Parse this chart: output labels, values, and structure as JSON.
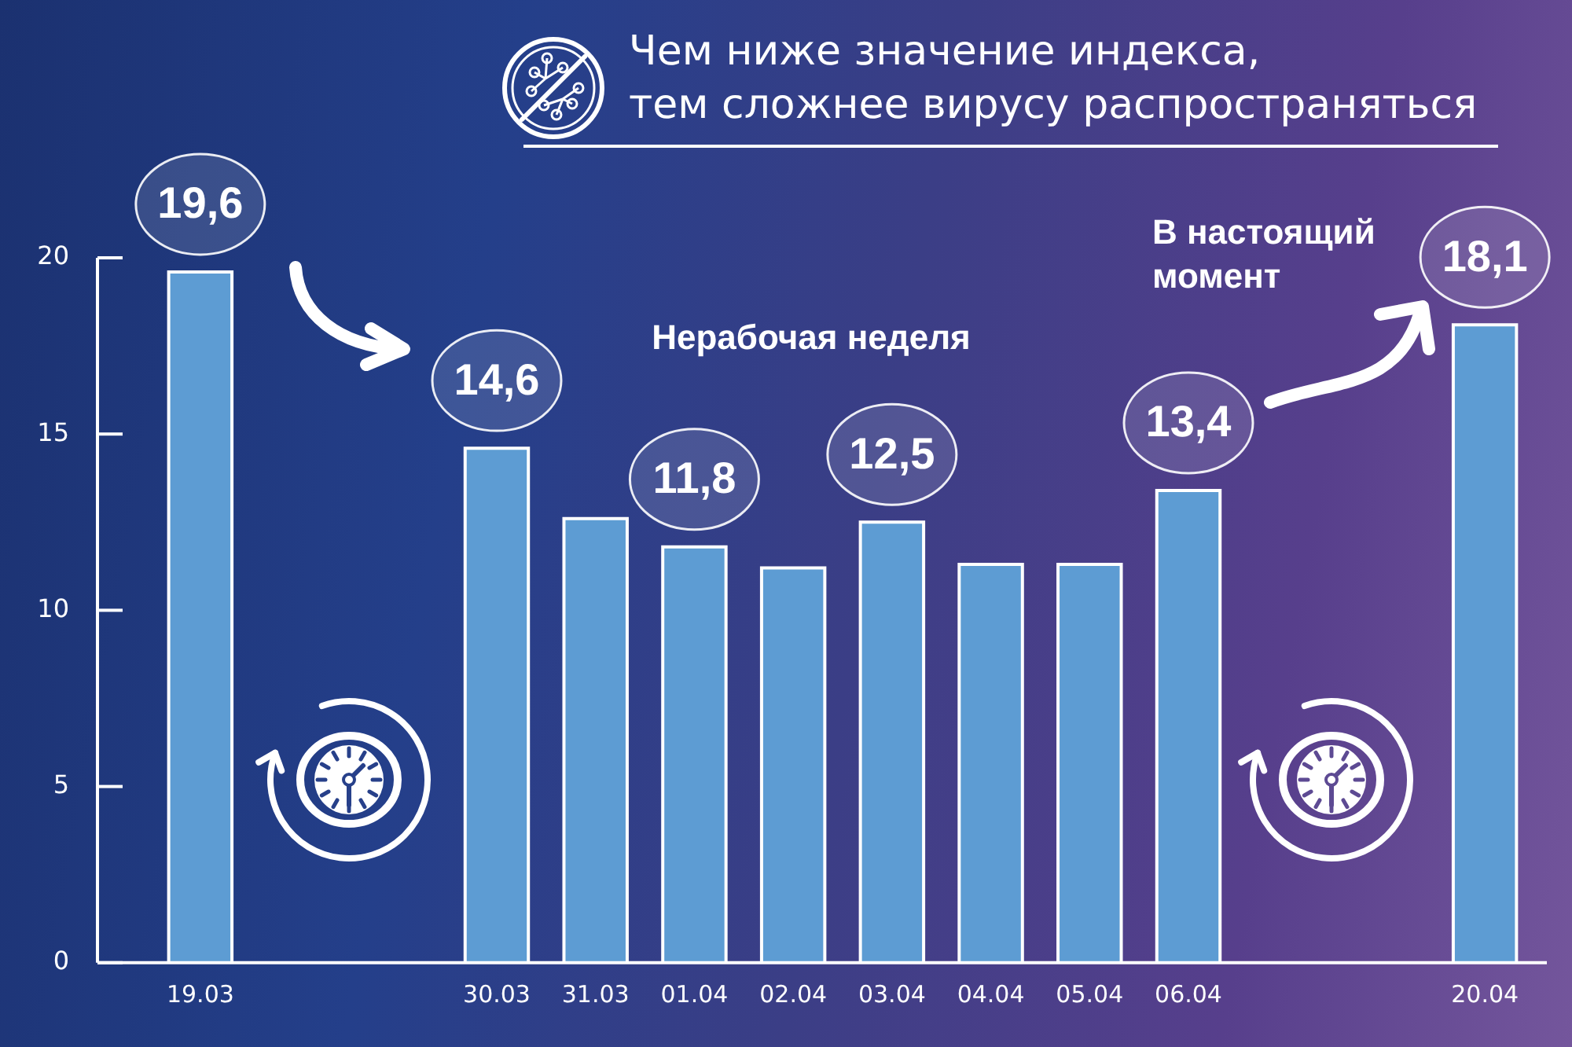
{
  "chart_data": {
    "type": "bar",
    "title": "Чем ниже значение индекса,\nтем сложнее вирусу распространяться",
    "categories": [
      "19.03",
      null,
      null,
      "30.03",
      "31.03",
      "01.04",
      "02.04",
      "03.04",
      "04.04",
      "05.04",
      "06.04",
      null,
      null,
      "20.04"
    ],
    "values": [
      19.6,
      null,
      null,
      14.6,
      12.6,
      11.8,
      11.2,
      12.5,
      11.3,
      11.3,
      13.4,
      null,
      null,
      18.1
    ],
    "value_labels": [
      "19,6",
      null,
      null,
      "14,6",
      null,
      "11,8",
      null,
      "12,5",
      null,
      null,
      "13,4",
      null,
      null,
      "18,1"
    ],
    "color": "#5d9cd3",
    "ylim": [
      0,
      20
    ],
    "yticks": [
      0,
      5,
      10,
      15,
      20
    ],
    "annotations": [
      "Нерабочая неделя",
      "В настоящий момент"
    ]
  }
}
